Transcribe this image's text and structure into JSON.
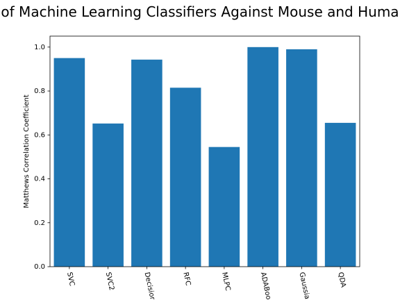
{
  "chart_data": {
    "type": "bar",
    "title": "of Machine Learning Classifiers Against Mouse and Huma",
    "xlabel": "",
    "ylabel": "Matthews Correlation Coefficient",
    "categories": [
      "SVC",
      "SVC2",
      "Decisior",
      "RFC",
      "MLPC",
      "ADABoo",
      "Gaussia",
      "QDA"
    ],
    "values": [
      0.95,
      0.652,
      0.943,
      0.815,
      0.545,
      1.0,
      0.99,
      0.655
    ],
    "yticks": [
      "0.0",
      "0.2",
      "0.4",
      "0.6",
      "0.8",
      "1.0"
    ],
    "ylim": [
      0,
      1.05
    ],
    "grid": false,
    "xtick_rotation": "rotated clockwise, near vertical",
    "bar_color": "#1f77b4"
  }
}
